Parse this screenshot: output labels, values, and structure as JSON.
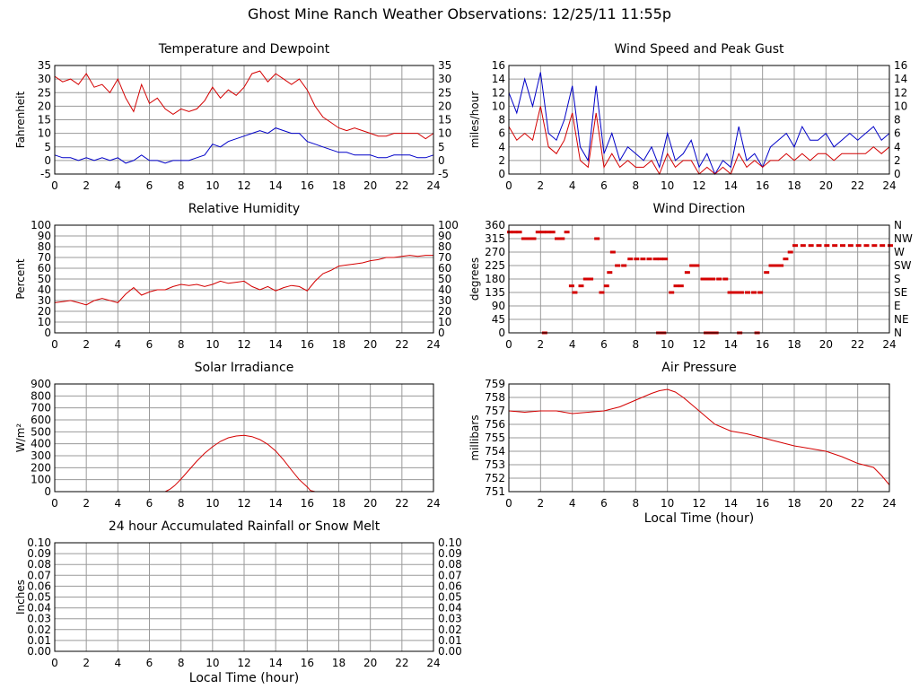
{
  "page_title": "Ghost Mine Ranch Weather Observations: 12/25/11 11:55p",
  "chart_data": [
    {
      "id": "temp",
      "type": "line",
      "title": "Temperature and Dewpoint",
      "ylabel": "Fahrenheit",
      "xlabel": "",
      "xlim": [
        0,
        24
      ],
      "ylim": [
        -5,
        35
      ],
      "xticks": [
        0,
        2,
        4,
        6,
        8,
        10,
        12,
        14,
        16,
        18,
        20,
        22,
        24
      ],
      "yticks": [
        -5,
        0,
        5,
        10,
        15,
        20,
        25,
        30,
        35
      ],
      "right_axis": true,
      "grid": true,
      "series": [
        {
          "color": "#d40000",
          "x": [
            0,
            0.5,
            1,
            1.5,
            2,
            2.5,
            3,
            3.5,
            4,
            4.5,
            5,
            5.5,
            6,
            6.5,
            7,
            7.5,
            8,
            8.5,
            9,
            9.5,
            10,
            10.5,
            11,
            11.5,
            12,
            12.5,
            13,
            13.5,
            14,
            14.5,
            15,
            15.5,
            16,
            16.5,
            17,
            17.5,
            18,
            18.5,
            19,
            19.5,
            20,
            20.5,
            21,
            21.5,
            22,
            22.5,
            23,
            23.5,
            24
          ],
          "y": [
            31,
            29,
            30,
            28,
            32,
            27,
            28,
            25,
            30,
            23,
            18,
            28,
            21,
            23,
            19,
            17,
            19,
            18,
            19,
            22,
            27,
            23,
            26,
            24,
            27,
            32,
            33,
            29,
            32,
            30,
            28,
            30,
            26,
            20,
            16,
            14,
            12,
            11,
            12,
            11,
            10,
            9,
            9,
            10,
            10,
            10,
            10,
            8,
            10
          ]
        },
        {
          "color": "#0000c8",
          "x": [
            0,
            0.5,
            1,
            1.5,
            2,
            2.5,
            3,
            3.5,
            4,
            4.5,
            5,
            5.5,
            6,
            6.5,
            7,
            7.5,
            8,
            8.5,
            9,
            9.5,
            10,
            10.5,
            11,
            11.5,
            12,
            12.5,
            13,
            13.5,
            14,
            14.5,
            15,
            15.5,
            16,
            16.5,
            17,
            17.5,
            18,
            18.5,
            19,
            19.5,
            20,
            20.5,
            21,
            21.5,
            22,
            22.5,
            23,
            23.5,
            24
          ],
          "y": [
            2,
            1,
            1,
            0,
            1,
            0,
            1,
            0,
            1,
            -1,
            0,
            2,
            0,
            0,
            -1,
            0,
            0,
            0,
            1,
            2,
            6,
            5,
            7,
            8,
            9,
            10,
            11,
            10,
            12,
            11,
            10,
            10,
            7,
            6,
            5,
            4,
            3,
            3,
            2,
            2,
            2,
            1,
            1,
            2,
            2,
            2,
            1,
            1,
            2
          ]
        }
      ]
    },
    {
      "id": "wind",
      "type": "line",
      "title": "Wind Speed and Peak Gust",
      "ylabel": "miles/hour",
      "xlabel": "",
      "xlim": [
        0,
        24
      ],
      "ylim": [
        0,
        16
      ],
      "xticks": [
        0,
        2,
        4,
        6,
        8,
        10,
        12,
        14,
        16,
        18,
        20,
        22,
        24
      ],
      "yticks": [
        0,
        2,
        4,
        6,
        8,
        10,
        12,
        14,
        16
      ],
      "right_axis": true,
      "grid": true,
      "series": [
        {
          "color": "#0000c8",
          "x": [
            0,
            0.5,
            1,
            1.5,
            2,
            2.5,
            3,
            3.5,
            4,
            4.5,
            5,
            5.5,
            6,
            6.5,
            7,
            7.5,
            8,
            8.5,
            9,
            9.5,
            10,
            10.5,
            11,
            11.5,
            12,
            12.5,
            13,
            13.5,
            14,
            14.5,
            15,
            15.5,
            16,
            16.5,
            17,
            17.5,
            18,
            18.5,
            19,
            19.5,
            20,
            20.5,
            21,
            21.5,
            22,
            22.5,
            23,
            23.5,
            24
          ],
          "y": [
            12,
            9,
            14,
            10,
            15,
            6,
            5,
            8,
            13,
            4,
            2,
            13,
            3,
            6,
            2,
            4,
            3,
            2,
            4,
            1,
            6,
            2,
            3,
            5,
            1,
            3,
            0,
            2,
            1,
            7,
            2,
            3,
            1,
            4,
            5,
            6,
            4,
            7,
            5,
            5,
            6,
            4,
            5,
            6,
            5,
            6,
            7,
            5,
            6
          ]
        },
        {
          "color": "#d40000",
          "x": [
            0,
            0.5,
            1,
            1.5,
            2,
            2.5,
            3,
            3.5,
            4,
            4.5,
            5,
            5.5,
            6,
            6.5,
            7,
            7.5,
            8,
            8.5,
            9,
            9.5,
            10,
            10.5,
            11,
            11.5,
            12,
            12.5,
            13,
            13.5,
            14,
            14.5,
            15,
            15.5,
            16,
            16.5,
            17,
            17.5,
            18,
            18.5,
            19,
            19.5,
            20,
            20.5,
            21,
            21.5,
            22,
            22.5,
            23,
            23.5,
            24
          ],
          "y": [
            7,
            5,
            6,
            5,
            10,
            4,
            3,
            5,
            9,
            2,
            1,
            9,
            1,
            3,
            1,
            2,
            1,
            1,
            2,
            0,
            3,
            1,
            2,
            2,
            0,
            1,
            0,
            1,
            0,
            3,
            1,
            2,
            1,
            2,
            2,
            3,
            2,
            3,
            2,
            3,
            3,
            2,
            3,
            3,
            3,
            3,
            4,
            3,
            4
          ]
        }
      ]
    },
    {
      "id": "humidity",
      "type": "line",
      "title": "Relative Humidity",
      "ylabel": "Percent",
      "xlabel": "",
      "xlim": [
        0,
        24
      ],
      "ylim": [
        0,
        100
      ],
      "xticks": [
        0,
        2,
        4,
        6,
        8,
        10,
        12,
        14,
        16,
        18,
        20,
        22,
        24
      ],
      "yticks": [
        0,
        10,
        20,
        30,
        40,
        50,
        60,
        70,
        80,
        90,
        100
      ],
      "right_axis": true,
      "grid": true,
      "series": [
        {
          "color": "#d40000",
          "x": [
            0,
            0.5,
            1,
            1.5,
            2,
            2.5,
            3,
            3.5,
            4,
            4.5,
            5,
            5.5,
            6,
            6.5,
            7,
            7.5,
            8,
            8.5,
            9,
            9.5,
            10,
            10.5,
            11,
            11.5,
            12,
            12.5,
            13,
            13.5,
            14,
            14.5,
            15,
            15.5,
            16,
            16.5,
            17,
            17.5,
            18,
            18.5,
            19,
            19.5,
            20,
            20.5,
            21,
            21.5,
            22,
            22.5,
            23,
            23.5,
            24
          ],
          "y": [
            28,
            29,
            30,
            28,
            26,
            30,
            32,
            30,
            28,
            36,
            42,
            35,
            38,
            40,
            40,
            43,
            45,
            44,
            45,
            43,
            45,
            48,
            46,
            47,
            48,
            43,
            40,
            43,
            39,
            42,
            44,
            43,
            39,
            48,
            55,
            58,
            62,
            63,
            64,
            65,
            67,
            68,
            70,
            70,
            71,
            72,
            71,
            72,
            72
          ]
        }
      ]
    },
    {
      "id": "direction",
      "type": "scatter",
      "title": "Wind Direction",
      "ylabel": "degrees",
      "xlabel": "",
      "xlim": [
        0,
        24
      ],
      "ylim": [
        0,
        360
      ],
      "xticks": [
        0,
        2,
        4,
        6,
        8,
        10,
        12,
        14,
        16,
        18,
        20,
        22,
        24
      ],
      "yticks": [
        0,
        45,
        90,
        135,
        180,
        225,
        270,
        315,
        360
      ],
      "right_tick_labels": [
        "N",
        "NE",
        "E",
        "SE",
        "S",
        "SW",
        "W",
        "NW",
        "N"
      ],
      "grid": true,
      "series": [
        {
          "color": "#d40000",
          "x": [
            0,
            0.3,
            0.6,
            0.9,
            1.2,
            1.5,
            1.8,
            2.1,
            2.4,
            2.7,
            3.0,
            3.3,
            3.6,
            2.2,
            3.9,
            4.1,
            4.5,
            4.8,
            5.1,
            5.5,
            5.8,
            6.1,
            6.3,
            6.5,
            6.8,
            7.2,
            7.6,
            8.0,
            8.4,
            8.8,
            9.2,
            9.5,
            9.8,
            9.4,
            9.7,
            10.2,
            10.5,
            10.8,
            11.2,
            11.5,
            11.8,
            12.2,
            12.5,
            12.8,
            13.2,
            13.6,
            12.4,
            12.7,
            13.0,
            13.9,
            14.1,
            14.3,
            14.6,
            15.0,
            15.4,
            15.8,
            14.5,
            15.6,
            16.2,
            16.5,
            16.8,
            17.1,
            17.4,
            17.7,
            18.0,
            18.5,
            19.0,
            19.5,
            20.0,
            20.5,
            21.0,
            21.5,
            22.0,
            22.5,
            23.0,
            23.5,
            24.0
          ],
          "y": [
            337,
            337,
            337,
            315,
            315,
            315,
            337,
            337,
            337,
            337,
            315,
            315,
            337,
            0,
            157,
            135,
            157,
            180,
            180,
            315,
            135,
            157,
            202,
            270,
            225,
            225,
            247,
            247,
            247,
            247,
            247,
            247,
            247,
            0,
            0,
            135,
            157,
            157,
            202,
            225,
            225,
            180,
            180,
            180,
            180,
            180,
            0,
            0,
            0,
            135,
            135,
            135,
            135,
            135,
            135,
            135,
            0,
            0,
            202,
            225,
            225,
            225,
            247,
            270,
            292,
            292,
            292,
            292,
            292,
            292,
            292,
            292,
            292,
            292,
            292,
            292,
            292
          ]
        }
      ]
    },
    {
      "id": "solar",
      "type": "line",
      "title": "Solar Irradiance",
      "ylabel": "W/m²",
      "xlabel": "",
      "xlim": [
        0,
        24
      ],
      "ylim": [
        0,
        900
      ],
      "xticks": [
        0,
        2,
        4,
        6,
        8,
        10,
        12,
        14,
        16,
        18,
        20,
        22,
        24
      ],
      "yticks": [
        0,
        100,
        200,
        300,
        400,
        500,
        600,
        700,
        800,
        900
      ],
      "right_axis": false,
      "grid": true,
      "series": [
        {
          "color": "#d40000",
          "x": [
            0,
            6,
            7,
            7.3,
            7.6,
            8,
            8.5,
            9,
            9.5,
            10,
            10.5,
            11,
            11.5,
            12,
            12.5,
            13,
            13.5,
            14,
            14.5,
            15,
            15.5,
            16,
            16.2,
            16.5,
            17,
            18,
            24
          ],
          "y": [
            0,
            0,
            0,
            20,
            50,
            105,
            180,
            255,
            320,
            375,
            420,
            450,
            465,
            470,
            460,
            435,
            395,
            340,
            265,
            180,
            100,
            40,
            10,
            0,
            0,
            0,
            0
          ]
        }
      ]
    },
    {
      "id": "pressure",
      "type": "line",
      "title": "Air Pressure",
      "ylabel": "millibars",
      "xlabel": "Local Time (hour)",
      "xlim": [
        0,
        24
      ],
      "ylim": [
        751,
        759
      ],
      "xticks": [
        0,
        2,
        4,
        6,
        8,
        10,
        12,
        14,
        16,
        18,
        20,
        22,
        24
      ],
      "yticks": [
        751,
        752,
        753,
        754,
        755,
        756,
        757,
        758,
        759
      ],
      "right_axis": false,
      "grid": true,
      "series": [
        {
          "color": "#d40000",
          "x": [
            0,
            1,
            2,
            3,
            4,
            5,
            6,
            7,
            8,
            9,
            9.5,
            10,
            10.5,
            11,
            11.5,
            12,
            12.5,
            13,
            14,
            15,
            16,
            17,
            18,
            19,
            20,
            21,
            22,
            23,
            23.5,
            24
          ],
          "y": [
            757.0,
            756.9,
            757.0,
            757.0,
            756.8,
            756.9,
            757.0,
            757.3,
            757.8,
            758.3,
            758.5,
            758.6,
            758.4,
            758.0,
            757.5,
            757.0,
            756.5,
            756.0,
            755.5,
            755.3,
            755.0,
            754.7,
            754.4,
            754.2,
            754.0,
            753.6,
            753.1,
            752.8,
            752.2,
            751.5
          ]
        }
      ]
    },
    {
      "id": "rain",
      "type": "line",
      "title": "24 hour Accumulated Rainfall or Snow Melt",
      "ylabel": "Inches",
      "xlabel": "Local Time (hour)",
      "xlim": [
        0,
        24
      ],
      "ylim": [
        0,
        0.1
      ],
      "xticks": [
        0,
        2,
        4,
        6,
        8,
        10,
        12,
        14,
        16,
        18,
        20,
        22,
        24
      ],
      "yticks": [
        "0.00",
        "0.01",
        "0.02",
        "0.03",
        "0.04",
        "0.05",
        "0.06",
        "0.07",
        "0.08",
        "0.09",
        "0.10"
      ],
      "right_axis": true,
      "grid": true,
      "series": [
        {
          "color": "#d40000",
          "x": [
            0,
            24
          ],
          "y": [
            0,
            0
          ]
        }
      ]
    }
  ]
}
